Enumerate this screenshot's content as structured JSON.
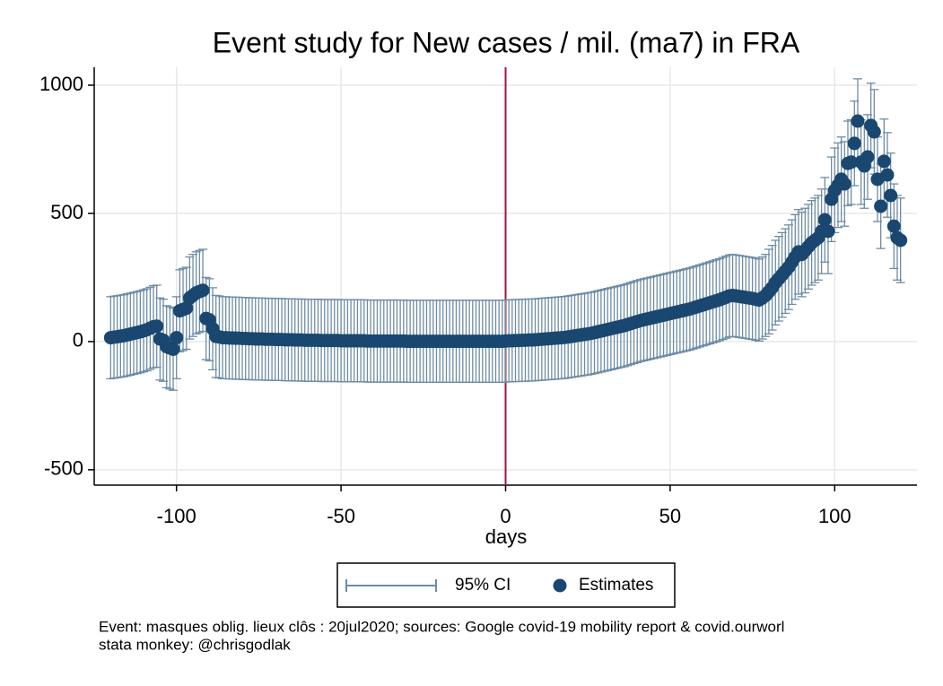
{
  "chart_data": {
    "type": "errorscatter",
    "title": "Event study for New cases / mil. (ma7) in FRA",
    "xlabel": "days",
    "x_start": -120,
    "xlim": [
      -125,
      125
    ],
    "xticks": [
      -100,
      -50,
      0,
      50,
      100
    ],
    "ylim": [
      -560,
      1070
    ],
    "yticks": [
      -500,
      0,
      500,
      1000
    ],
    "grid": true,
    "vline": 0,
    "vline_color": "#a3153e",
    "series": [
      {
        "name": "Estimates",
        "color": "#1a476f",
        "error_name": "95% CI",
        "error_color": "#6e8ca5",
        "values": [
          15,
          17,
          19,
          21,
          23,
          26,
          29,
          32,
          35,
          38,
          42,
          46,
          52,
          58,
          60,
          10,
          5,
          -20,
          -25,
          -30,
          15,
          120,
          125,
          130,
          170,
          180,
          190,
          195,
          200,
          90,
          85,
          50,
          20,
          18,
          15,
          15,
          14,
          14,
          13,
          13,
          12,
          12,
          11,
          11,
          10,
          10,
          10,
          9,
          9,
          9,
          8,
          8,
          8,
          7,
          7,
          7,
          6,
          6,
          6,
          5,
          5,
          5,
          5,
          5,
          4,
          4,
          4,
          4,
          4,
          4,
          3,
          3,
          3,
          3,
          3,
          3,
          3,
          3,
          2,
          2,
          2,
          2,
          2,
          2,
          2,
          2,
          2,
          2,
          2,
          2,
          1,
          1,
          1,
          1,
          1,
          1,
          1,
          1,
          1,
          1,
          1,
          1,
          1,
          1,
          1,
          1,
          1,
          1,
          1,
          1,
          1,
          1,
          1,
          1,
          1,
          1,
          1,
          1,
          1,
          1,
          2,
          3,
          3,
          4,
          4,
          5,
          5,
          6,
          6,
          7,
          8,
          9,
          10,
          11,
          12,
          13,
          14,
          15,
          16,
          18,
          20,
          22,
          24,
          26,
          28,
          30,
          32,
          35,
          38,
          41,
          44,
          47,
          50,
          53,
          56,
          59,
          62,
          66,
          70,
          74,
          78,
          82,
          85,
          88,
          91,
          94,
          97,
          100,
          103,
          106,
          109,
          112,
          115,
          118,
          121,
          124,
          127,
          131,
          135,
          139,
          143,
          147,
          151,
          155,
          159,
          163,
          168,
          173,
          178,
          180,
          178,
          176,
          174,
          172,
          170,
          168,
          165,
          162,
          170,
          180,
          195,
          210,
          230,
          245,
          260,
          275,
          290,
          310,
          330,
          350,
          340,
          355,
          370,
          385,
          395,
          405,
          430,
          475,
          430,
          555,
          590,
          610,
          633,
          615,
          695,
          700,
          773,
          860,
          700,
          685,
          720,
          843,
          818,
          633,
          528,
          703,
          650,
          570,
          450,
          405,
          395
        ],
        "errors": [
          160,
          160,
          160,
          160,
          160,
          160,
          160,
          160,
          160,
          160,
          160,
          160,
          160,
          160,
          160,
          160,
          160,
          160,
          160,
          160,
          160,
          160,
          160,
          160,
          160,
          160,
          160,
          160,
          160,
          160,
          160,
          160,
          160,
          160,
          160,
          160,
          160,
          160,
          160,
          160,
          160,
          160,
          160,
          160,
          160,
          160,
          160,
          160,
          160,
          160,
          160,
          160,
          160,
          160,
          160,
          160,
          160,
          160,
          160,
          160,
          160,
          160,
          160,
          160,
          160,
          160,
          160,
          160,
          160,
          160,
          160,
          160,
          160,
          160,
          160,
          160,
          160,
          160,
          160,
          160,
          160,
          160,
          160,
          160,
          160,
          160,
          160,
          160,
          160,
          160,
          160,
          160,
          160,
          160,
          160,
          160,
          160,
          160,
          160,
          160,
          160,
          160,
          160,
          160,
          160,
          160,
          160,
          160,
          160,
          160,
          160,
          160,
          160,
          160,
          160,
          160,
          160,
          160,
          160,
          160,
          160,
          160,
          160,
          160,
          160,
          160,
          160,
          160,
          160,
          160,
          160,
          160,
          160,
          160,
          160,
          160,
          160,
          160,
          160,
          160,
          160,
          160,
          160,
          160,
          160,
          160,
          160,
          160,
          160,
          160,
          160,
          160,
          160,
          160,
          160,
          160,
          160,
          160,
          160,
          160,
          160,
          160,
          160,
          160,
          160,
          160,
          160,
          160,
          160,
          160,
          160,
          160,
          160,
          160,
          160,
          160,
          160,
          160,
          160,
          160,
          160,
          160,
          160,
          160,
          160,
          160,
          160,
          160,
          160,
          160,
          160,
          160,
          160,
          160,
          160,
          160,
          160,
          160,
          160,
          160,
          165,
          165,
          165,
          165,
          165,
          165,
          165,
          165,
          165,
          165,
          165,
          165,
          165,
          165,
          165,
          165,
          165,
          165,
          165,
          165,
          165,
          165,
          165,
          165,
          165,
          165,
          165,
          165,
          165,
          165,
          165,
          165,
          165,
          165,
          165,
          165,
          165,
          165,
          165,
          165,
          165
        ]
      }
    ],
    "notes": [
      "Event: masques oblig. lieux clôs : 20jul2020; sources: Google covid-19 mobility report & covid.ourworl",
      "stata monkey: @chrisgodlak"
    ]
  }
}
